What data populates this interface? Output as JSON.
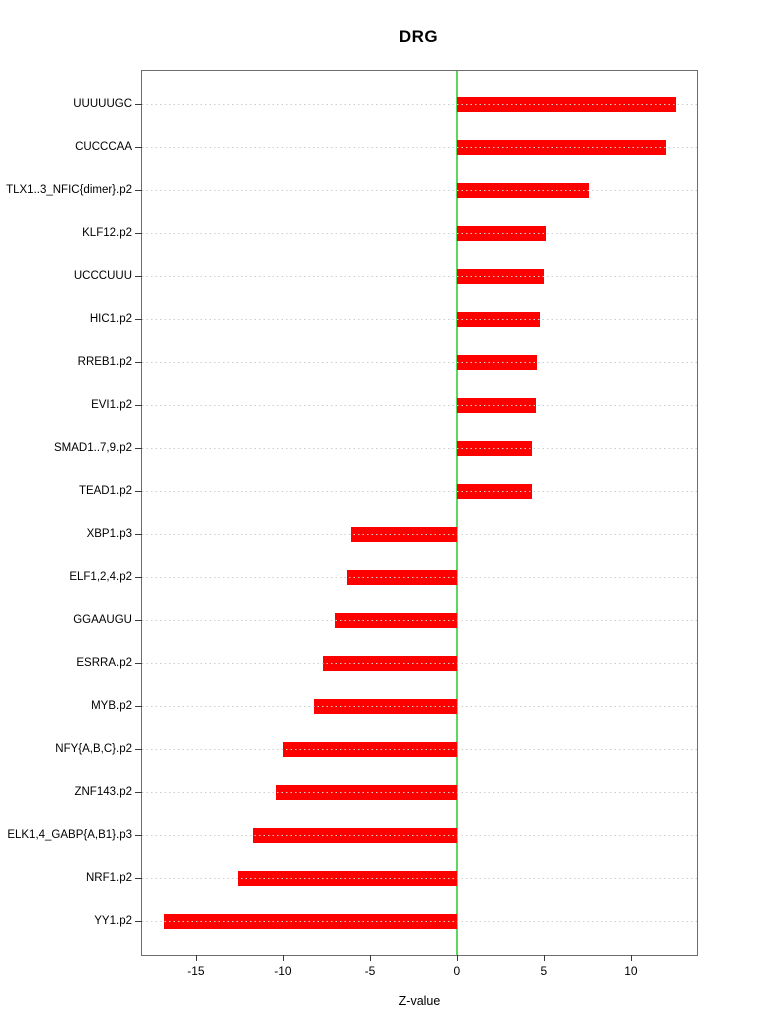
{
  "chart_data": {
    "type": "bar",
    "orientation": "horizontal",
    "title": "DRG",
    "xlabel": "Z-value",
    "categories": [
      "UUUUUGC",
      "CUCCCAA",
      "TLX1..3_NFIC{dimer}.p2",
      "KLF12.p2",
      "UCCCUUU",
      "HIC1.p2",
      "RREB1.p2",
      "EVI1.p2",
      "SMAD1..7,9.p2",
      "TEAD1.p2",
      "XBP1.p3",
      "ELF1,2,4.p2",
      "GGAAUGU",
      "ESRRA.p2",
      "MYB.p2",
      "NFY{A,B,C}.p2",
      "ZNF143.p2",
      "ELK1,4_GABP{A,B1}.p3",
      "NRF1.p2",
      "YY1.p2"
    ],
    "values": [
      12.6,
      12.0,
      7.6,
      5.1,
      5.0,
      4.8,
      4.6,
      4.55,
      4.3,
      4.3,
      -6.1,
      -6.3,
      -7.0,
      -7.7,
      -8.2,
      -10.0,
      -10.4,
      -11.7,
      -12.6,
      -16.85
    ],
    "xlim": [
      -18.1,
      13.8
    ],
    "xticks": [
      -15,
      -10,
      -5,
      0,
      5,
      10
    ],
    "bar_color": "#ff0000",
    "zero_line_color": "#5cd95c",
    "grid": "dotted horizontal line per category, drawn across plot",
    "legend": "none"
  }
}
